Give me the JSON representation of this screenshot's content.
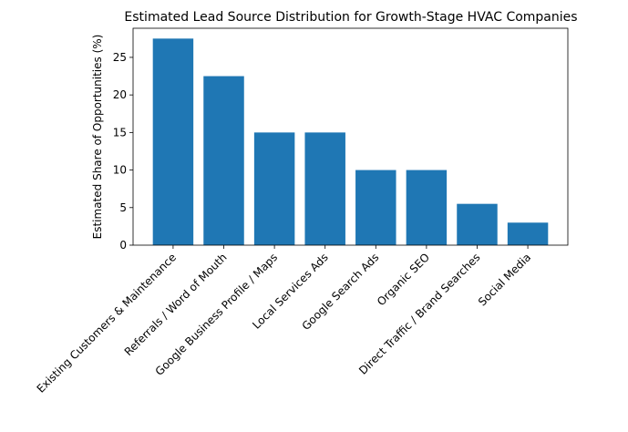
{
  "chart_data": {
    "type": "bar",
    "title": "Estimated Lead Source Distribution for Growth-Stage HVAC Companies",
    "y_label": "Estimated Share of Opportunities (%)",
    "categories": [
      "Existing Customers & Maintenance",
      "Referrals / Word of Mouth",
      "Google Business Profile / Maps",
      "Local Services Ads",
      "Google Search Ads",
      "Organic SEO",
      "Direct Traffic / Brand Searches",
      "Social Media"
    ],
    "values": [
      27.5,
      22.5,
      15,
      15,
      10,
      10,
      5.5,
      3
    ],
    "color": "#1f77b4",
    "ylim": [
      0,
      28.875
    ],
    "yticks": [
      0,
      5,
      10,
      15,
      20,
      25
    ],
    "grid": false
  }
}
